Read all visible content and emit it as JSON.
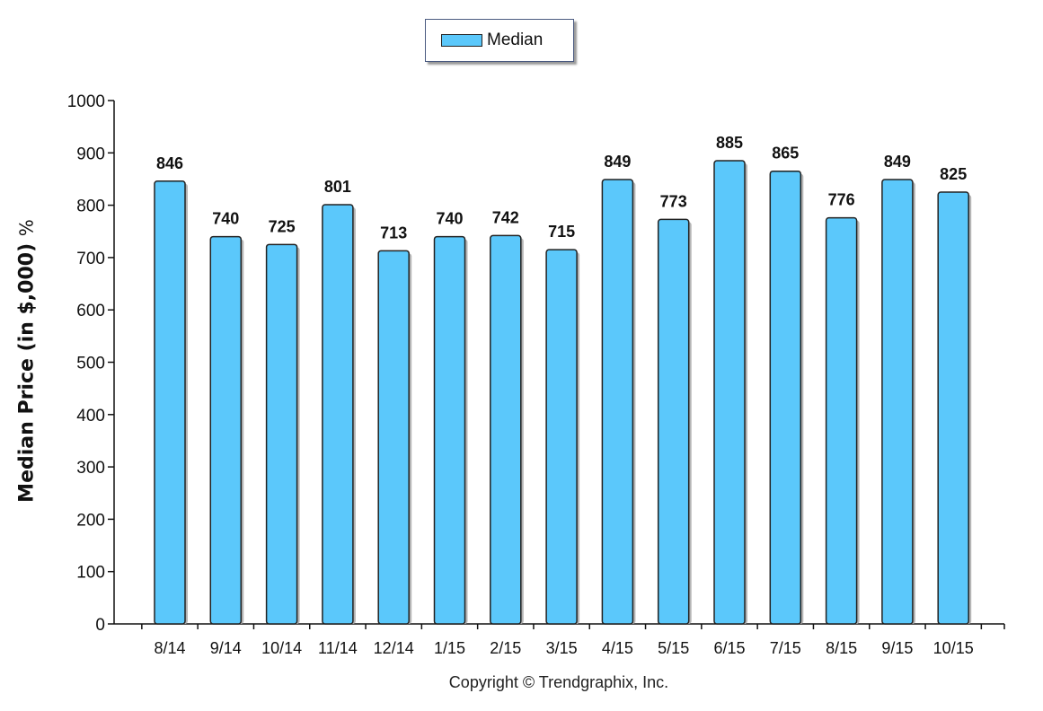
{
  "legend": {
    "label": "Median",
    "swatch_color": "#5bc8fb"
  },
  "chart_data": {
    "type": "bar",
    "categories": [
      "8/14",
      "9/14",
      "10/14",
      "11/14",
      "12/14",
      "1/15",
      "2/15",
      "3/15",
      "4/15",
      "5/15",
      "6/15",
      "7/15",
      "8/15",
      "9/15",
      "10/15"
    ],
    "series": [
      {
        "name": "Median",
        "values": [
          846,
          740,
          725,
          801,
          713,
          740,
          742,
          715,
          849,
          773,
          885,
          865,
          776,
          849,
          825
        ]
      }
    ],
    "ylabel_main": "Median Price (in $,000)",
    "ylabel_unit": "%",
    "xlabel": "",
    "ylim": [
      0,
      1000
    ],
    "yticks": [
      0,
      100,
      200,
      300,
      400,
      500,
      600,
      700,
      800,
      900,
      1000
    ],
    "grid": false,
    "legend_position": "top-center",
    "bar_color": "#5bc8fb",
    "bar_edge_color": "#222222"
  },
  "footer": {
    "copyright": "Copyright © Trendgraphix, Inc."
  }
}
